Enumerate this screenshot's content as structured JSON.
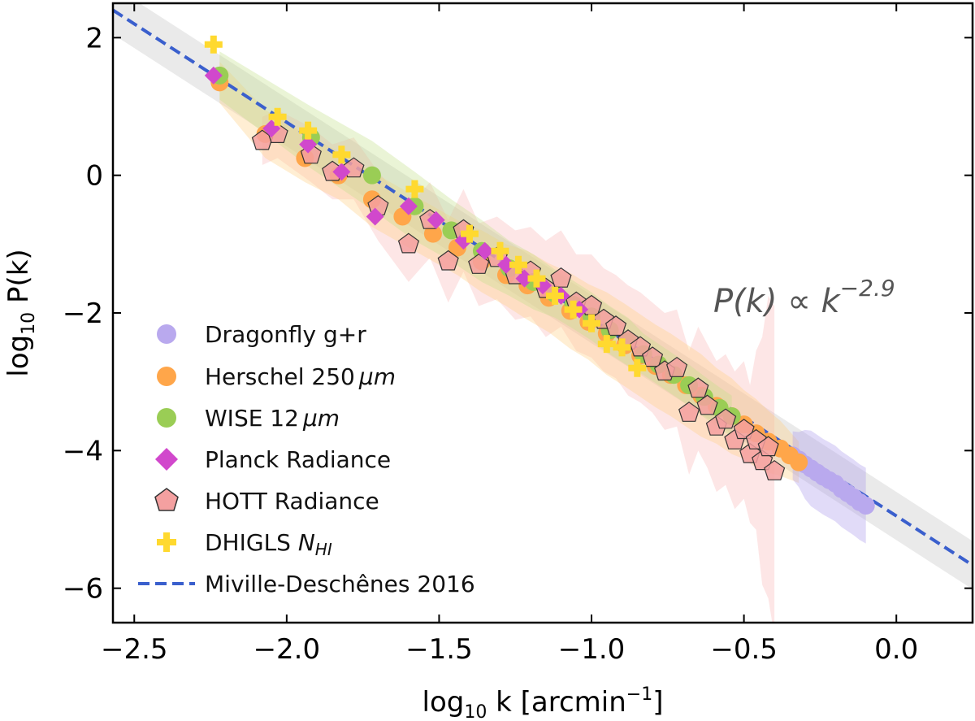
{
  "chart_data": {
    "type": "scatter",
    "title": "",
    "xlabel": "log",
    "xlabel_sub": "10",
    "xlabel_tail": " k [arcmin",
    "xlabel_sup": "−1",
    "xlabel_close": "]",
    "ylabel": "log",
    "ylabel_sub": "10",
    "ylabel_tail": " P(k)",
    "xlim": [
      -2.57,
      0.25
    ],
    "ylim": [
      -6.5,
      2.5
    ],
    "xticks": [
      -2.5,
      -2.0,
      -1.5,
      -1.0,
      -0.5,
      0.0
    ],
    "xtick_labels": [
      "−2.5",
      "−2.0",
      "−1.5",
      "−1.0",
      "−0.5",
      "0.0"
    ],
    "yticks": [
      -6,
      -4,
      -2,
      0,
      2
    ],
    "ytick_labels": [
      "−6",
      "−4",
      "−2",
      "0",
      "2"
    ],
    "grid": false,
    "legend_position": "lower-left",
    "annotation": {
      "base": "P(k) ∝ k",
      "exponent": "−2.9",
      "x": -0.68,
      "y": -1.85
    },
    "fit": {
      "name": "Miville-Deschênes 2016",
      "slope": -2.86,
      "intercept": -4.95,
      "band_halfwidth": 0.35,
      "color": "#3a5fcd"
    },
    "series": [
      {
        "name": "Dragonfly g+r",
        "marker": "circle",
        "color": "#b9a9ee",
        "band_color": "#a897ec",
        "x": [
          -0.34,
          -0.32,
          -0.3,
          -0.28,
          -0.26,
          -0.24,
          -0.22,
          -0.2,
          -0.18,
          -0.16,
          -0.14,
          -0.12,
          -0.1
        ],
        "y": [
          -4.07,
          -4.13,
          -4.2,
          -4.26,
          -4.32,
          -4.38,
          -4.43,
          -4.48,
          -4.56,
          -4.62,
          -4.68,
          -4.75,
          -4.8
        ],
        "err": [
          0.35,
          0.4,
          0.5,
          0.55,
          0.55,
          0.55,
          0.55,
          0.55,
          0.55,
          0.55,
          0.55,
          0.55,
          0.55
        ]
      },
      {
        "name": "Herschel 250 μm",
        "label_main": "Herschel 250",
        "label_unit": "μm",
        "marker": "circle",
        "color": "#ffa64a",
        "band_color": "#ffcf80",
        "x": [
          -2.22,
          -2.07,
          -1.94,
          -1.83,
          -1.72,
          -1.62,
          -1.52,
          -1.44,
          -1.36,
          -1.28,
          -1.21,
          -1.14,
          -1.07,
          -1.01,
          -0.95,
          -0.89,
          -0.84,
          -0.79,
          -0.74,
          -0.69,
          -0.64,
          -0.59,
          -0.54,
          -0.5,
          -0.46,
          -0.42,
          -0.38,
          -0.35,
          -0.32
        ],
        "y": [
          1.35,
          0.6,
          0.25,
          0.0,
          -0.35,
          -0.6,
          -0.85,
          -1.05,
          -1.25,
          -1.45,
          -1.6,
          -1.78,
          -1.97,
          -2.13,
          -2.3,
          -2.47,
          -2.62,
          -2.77,
          -2.9,
          -3.05,
          -3.2,
          -3.35,
          -3.5,
          -3.62,
          -3.75,
          -3.87,
          -3.97,
          -4.07,
          -4.17
        ],
        "err": [
          0.3,
          0.35,
          0.35,
          0.35,
          0.4,
          0.4,
          0.4,
          0.4,
          0.45,
          0.45,
          0.5,
          0.5,
          0.55,
          0.55,
          0.6,
          0.6,
          0.6,
          0.6,
          0.6,
          0.6,
          0.6,
          0.55,
          0.55,
          0.5,
          0.5,
          0.45,
          0.4,
          0.35,
          0.3
        ]
      },
      {
        "name": "WISE 12 μm",
        "label_main": "WISE 12",
        "label_unit": "μm",
        "marker": "circle",
        "color": "#9acd55",
        "band_color": "#c3e08a",
        "x": [
          -2.22,
          -1.92,
          -1.72,
          -1.58,
          -1.46,
          -1.36,
          -1.27,
          -1.19,
          -1.12,
          -1.06,
          -1.0,
          -0.94,
          -0.88,
          -0.83,
          -0.78,
          -0.73,
          -0.68,
          -0.63,
          -0.58,
          -0.54
        ],
        "y": [
          1.45,
          0.55,
          0.0,
          -0.45,
          -0.8,
          -1.1,
          -1.35,
          -1.55,
          -1.72,
          -1.88,
          -2.05,
          -2.25,
          -2.42,
          -2.6,
          -2.75,
          -2.9,
          -3.05,
          -3.22,
          -3.38,
          -3.5
        ],
        "err": [
          0.35,
          0.45,
          0.5,
          0.5,
          0.45,
          0.45,
          0.4,
          0.4,
          0.35,
          0.35,
          0.35,
          0.35,
          0.35,
          0.3,
          0.3,
          0.3,
          0.3,
          0.3,
          0.3,
          0.3
        ]
      },
      {
        "name": "Planck Radiance",
        "marker": "diamond",
        "color": "#d148cc",
        "x": [
          -2.24,
          -2.05,
          -1.93,
          -1.82,
          -1.71,
          -1.6,
          -1.51,
          -1.42,
          -1.35,
          -1.28,
          -1.22,
          -1.16,
          -1.1,
          -1.04
        ],
        "y": [
          1.45,
          0.68,
          0.45,
          0.05,
          -0.6,
          -0.45,
          -0.65,
          -0.95,
          -1.1,
          -1.3,
          -1.5,
          -1.6,
          -1.75,
          -1.95
        ]
      },
      {
        "name": "HOTT Radiance",
        "marker": "pentagon",
        "color": "#f4a0a0",
        "stroke": "#333333",
        "band_color": "#f8b8b8",
        "x": [
          -2.08,
          -2.03,
          -1.92,
          -1.85,
          -1.78,
          -1.7,
          -1.6,
          -1.53,
          -1.47,
          -1.42,
          -1.37,
          -1.31,
          -1.25,
          -1.2,
          -1.15,
          -1.1,
          -1.05,
          -1.0,
          -0.96,
          -0.92,
          -0.88,
          -0.84,
          -0.8,
          -0.76,
          -0.72,
          -0.68,
          -0.65,
          -0.62,
          -0.59,
          -0.56,
          -0.53,
          -0.5,
          -0.48,
          -0.46,
          -0.44,
          -0.42,
          -0.4
        ],
        "y": [
          0.5,
          0.6,
          0.3,
          0.05,
          0.1,
          -0.45,
          -1.0,
          -0.65,
          -1.25,
          -0.8,
          -1.3,
          -1.2,
          -1.45,
          -1.4,
          -1.65,
          -1.5,
          -1.85,
          -1.9,
          -2.1,
          -2.2,
          -2.4,
          -2.5,
          -2.65,
          -2.85,
          -2.8,
          -3.45,
          -3.1,
          -3.35,
          -3.65,
          -3.55,
          -3.85,
          -3.7,
          -4.05,
          -3.85,
          -4.15,
          -3.95,
          -4.3
        ],
        "err": [
          0.35,
          0.35,
          0.4,
          0.4,
          0.45,
          0.5,
          0.55,
          0.55,
          0.6,
          0.6,
          0.6,
          0.6,
          0.65,
          0.65,
          0.7,
          0.7,
          0.7,
          0.75,
          0.75,
          0.75,
          0.8,
          0.8,
          0.8,
          0.85,
          0.85,
          0.9,
          0.9,
          0.9,
          0.95,
          0.95,
          1.0,
          1.0,
          1.0,
          1.3,
          1.8,
          2.2,
          2.4
        ]
      },
      {
        "name": "DHIGLS N_HI",
        "label_main": "DHIGLS ",
        "label_italic": "N",
        "label_sub": "HI",
        "marker": "plus",
        "color": "#ffd92f",
        "x": [
          -2.24,
          -2.03,
          -1.93,
          -1.82,
          -1.58,
          -1.4,
          -1.3,
          -1.24,
          -1.18,
          -1.12,
          -1.06,
          -1.0,
          -0.95,
          -0.9,
          -0.85
        ],
        "y": [
          1.9,
          0.85,
          0.65,
          0.3,
          -0.2,
          -0.85,
          -1.1,
          -1.3,
          -1.5,
          -1.75,
          -1.95,
          -2.15,
          -2.45,
          -2.5,
          -2.8
        ]
      }
    ]
  }
}
